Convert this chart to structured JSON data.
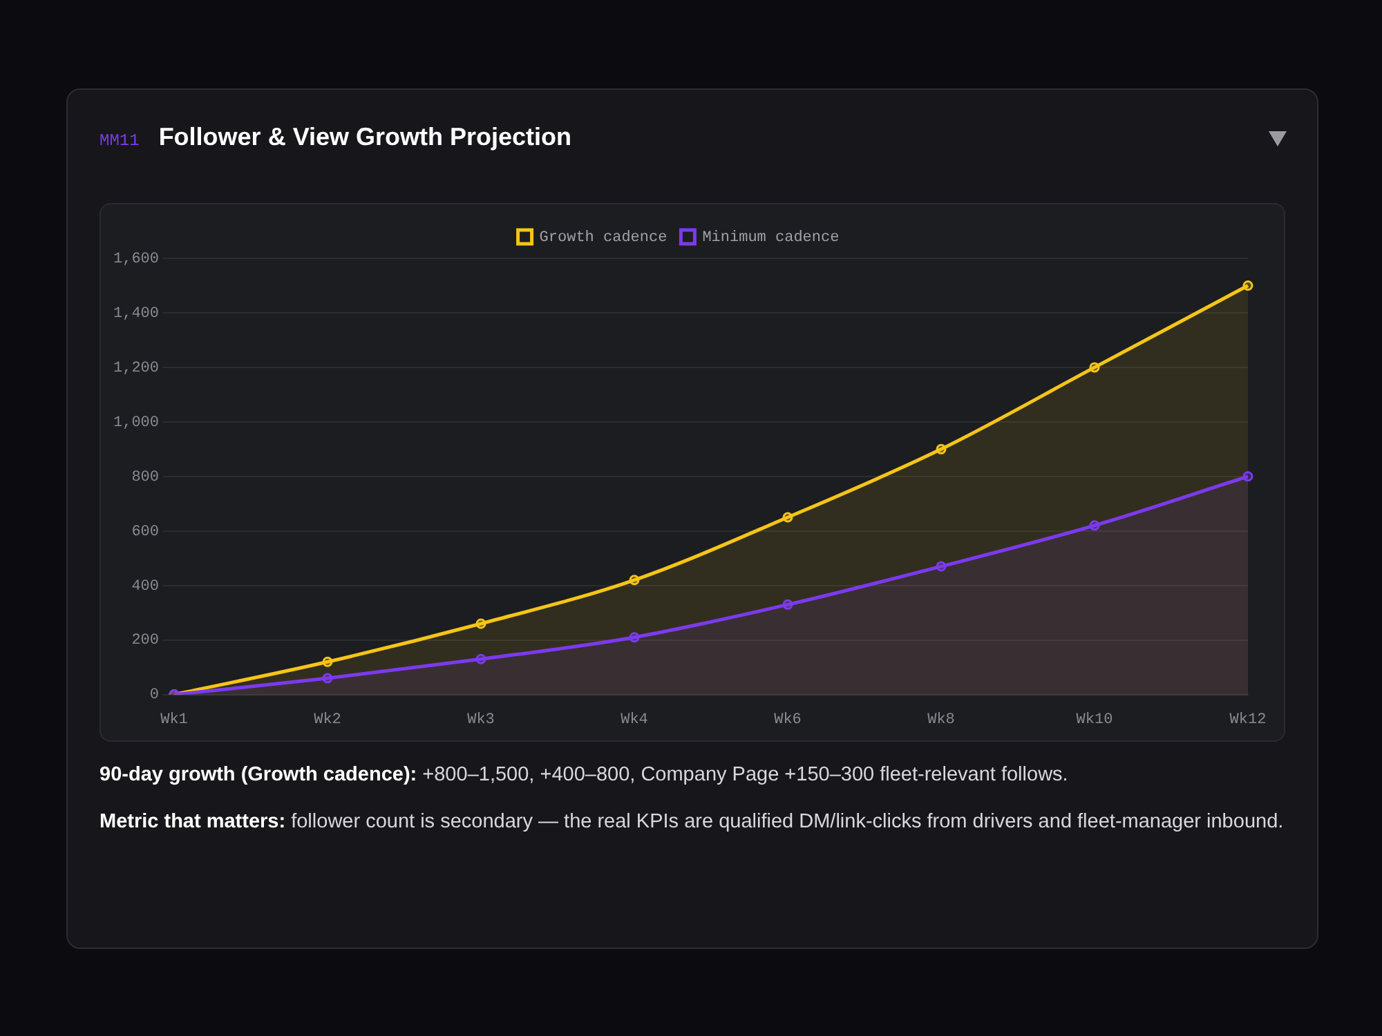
{
  "chart_data": {
    "type": "area",
    "title": "Follower & View Growth Projection",
    "subtitle": "MM11",
    "categories": [
      "Wk1",
      "Wk2",
      "Wk3",
      "Wk4",
      "Wk6",
      "Wk8",
      "Wk10",
      "Wk12"
    ],
    "series": [
      {
        "name": "Growth cadence",
        "color": "#f5c518",
        "values": [
          0,
          120,
          260,
          420,
          650,
          900,
          1200,
          1500
        ]
      },
      {
        "name": "Minimum cadence",
        "color": "#7c3aed",
        "values": [
          0,
          60,
          130,
          210,
          330,
          470,
          620,
          800
        ]
      }
    ],
    "ylim": [
      0,
      1600
    ],
    "yticks": [
      0,
      200,
      400,
      600,
      800,
      {
        "value": 1000,
        "label": "1,000"
      },
      {
        "value": 1200,
        "label": "1,200"
      },
      {
        "value": 1400,
        "label": "1,400"
      },
      {
        "value": 1600,
        "label": "1,600"
      }
    ],
    "grid": "y",
    "legend": "top",
    "marker": "circle",
    "line_style": "solid",
    "annotations": [
      "90-day growth (Growth cadence): +800–1,500, +400–800, Company Page +150–300 fleet-relevant follows.",
      "Metric that matters: follower count is secondary — the real KPIs are qualified DM/link-clicks from drivers and fleet-manager inbound."
    ]
  }
}
